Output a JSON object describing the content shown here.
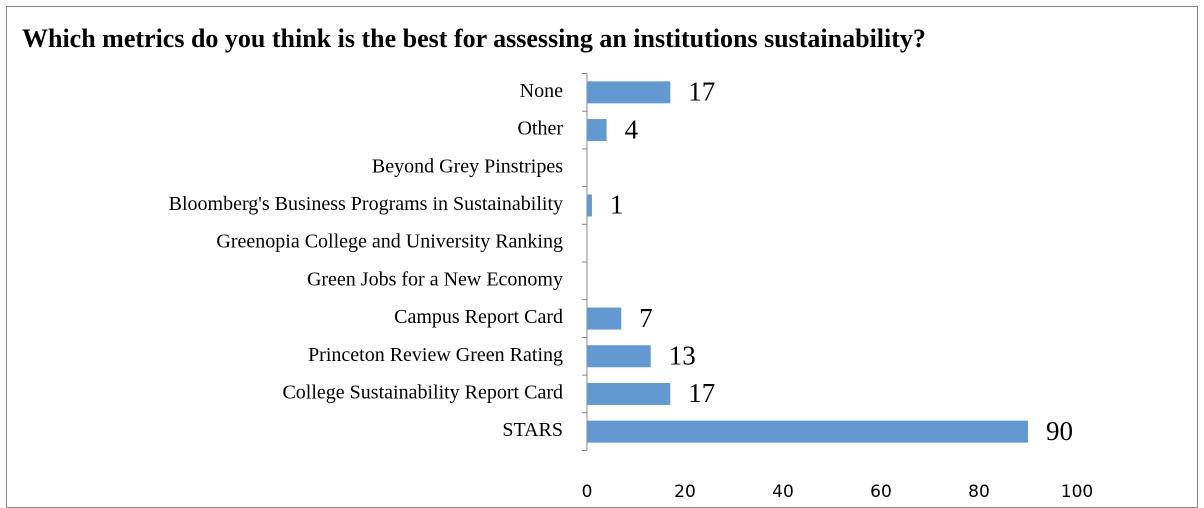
{
  "chart_data": {
    "type": "hbar",
    "title": "Which metrics do you think is the best for assessing an institutions sustainability?",
    "categories": [
      "None",
      "Other",
      "Beyond Grey Pinstripes",
      "Bloomberg's Business Programs in Sustainability",
      "Greenopia College and University Ranking",
      "Green Jobs for a New Economy",
      "Campus Report Card",
      "Princeton Review Green Rating",
      "College Sustainability Report Card",
      "STARS"
    ],
    "values": [
      17,
      4,
      0,
      1,
      0,
      0,
      7,
      13,
      17,
      90
    ],
    "value_labels": [
      "17",
      "4",
      null,
      "1",
      null,
      null,
      "7",
      "13",
      "17",
      "90"
    ],
    "color": "#6199d0",
    "xlim": [
      0,
      100
    ],
    "xticks": [
      0,
      20,
      40,
      60,
      80,
      100
    ],
    "grid": false
  }
}
